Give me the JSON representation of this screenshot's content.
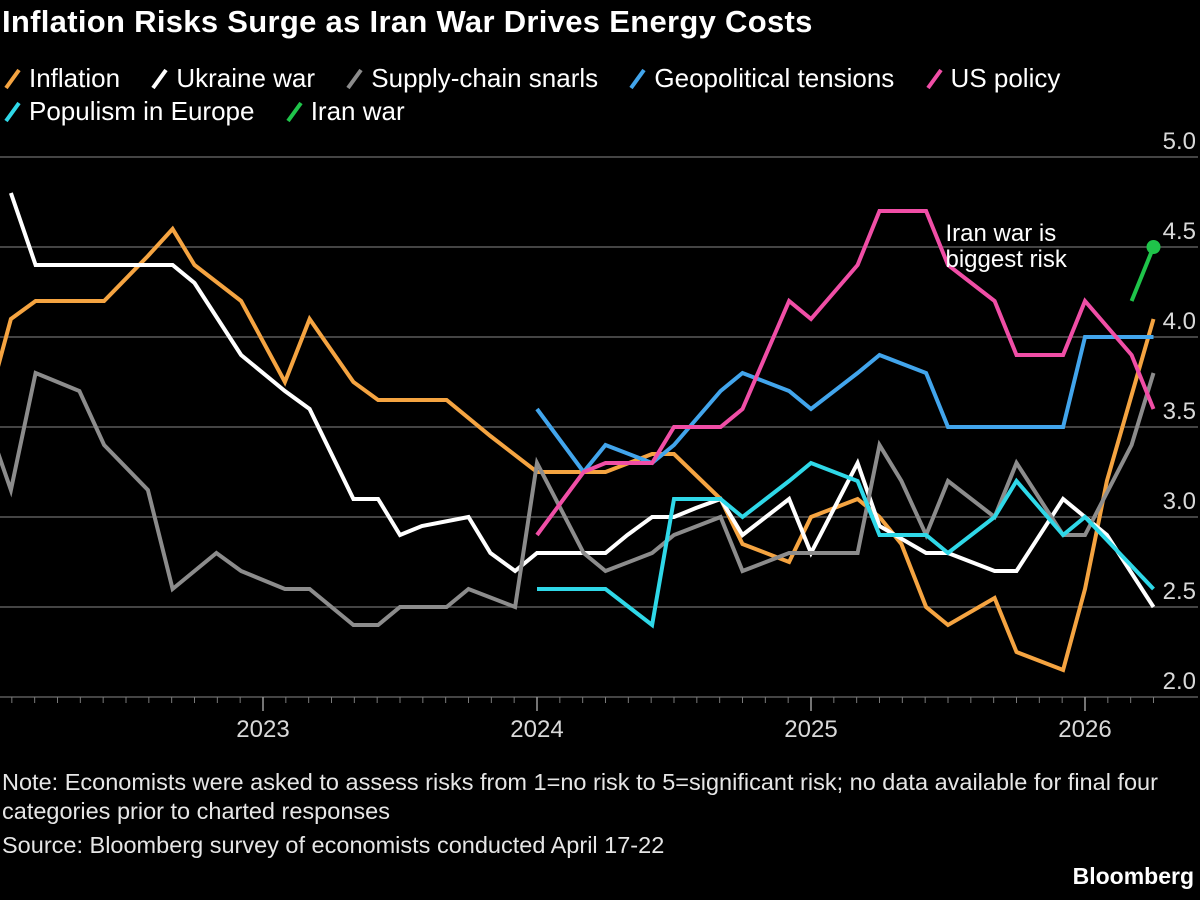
{
  "chart_data": {
    "type": "line",
    "title": "Inflation Risks Surge as Iran War Drives Energy Costs",
    "xlabel": "",
    "ylabel": "",
    "ylim": [
      2.0,
      5.0
    ],
    "yticks": [
      "2.0",
      "2.5",
      "3.0",
      "3.5",
      "4.0",
      "4.5",
      "5.0"
    ],
    "xlim": [
      2022.0,
      2026.33
    ],
    "xticks": [
      {
        "label": "2023",
        "value": 2023.0
      },
      {
        "label": "2024",
        "value": 2024.0
      },
      {
        "label": "2025",
        "value": 2025.0
      },
      {
        "label": "2026",
        "value": 2026.0
      }
    ],
    "legend_position": "top",
    "grid": "horizontal",
    "series": [
      {
        "name": "Inflation",
        "color": "#f5a441",
        "points": [
          [
            2022.0,
            3.65
          ],
          [
            2022.08,
            4.1
          ],
          [
            2022.17,
            4.2
          ],
          [
            2022.25,
            4.2
          ],
          [
            2022.33,
            4.2
          ],
          [
            2022.42,
            4.2
          ],
          [
            2022.58,
            4.45
          ],
          [
            2022.67,
            4.6
          ],
          [
            2022.75,
            4.4
          ],
          [
            2022.92,
            4.2
          ],
          [
            2023.08,
            3.75
          ],
          [
            2023.17,
            4.1
          ],
          [
            2023.33,
            3.75
          ],
          [
            2023.42,
            3.65
          ],
          [
            2023.58,
            3.65
          ],
          [
            2023.67,
            3.65
          ],
          [
            2023.83,
            3.45
          ],
          [
            2024.0,
            3.25
          ],
          [
            2024.08,
            3.25
          ],
          [
            2024.17,
            3.25
          ],
          [
            2024.25,
            3.25
          ],
          [
            2024.42,
            3.35
          ],
          [
            2024.5,
            3.35
          ],
          [
            2024.67,
            3.1
          ],
          [
            2024.75,
            2.85
          ],
          [
            2024.92,
            2.75
          ],
          [
            2025.0,
            3.0
          ],
          [
            2025.17,
            3.1
          ],
          [
            2025.25,
            3.0
          ],
          [
            2025.33,
            2.85
          ],
          [
            2025.42,
            2.5
          ],
          [
            2025.5,
            2.4
          ],
          [
            2025.67,
            2.55
          ],
          [
            2025.75,
            2.25
          ],
          [
            2025.92,
            2.15
          ],
          [
            2026.0,
            2.6
          ],
          [
            2026.08,
            3.2
          ],
          [
            2026.25,
            4.1
          ]
        ]
      },
      {
        "name": "Ukraine war",
        "color": "#ffffff",
        "points": [
          [
            2022.08,
            4.8
          ],
          [
            2022.17,
            4.4
          ],
          [
            2022.25,
            4.4
          ],
          [
            2022.5,
            4.4
          ],
          [
            2022.58,
            4.4
          ],
          [
            2022.67,
            4.4
          ],
          [
            2022.75,
            4.3
          ],
          [
            2022.92,
            3.9
          ],
          [
            2023.08,
            3.7
          ],
          [
            2023.17,
            3.6
          ],
          [
            2023.33,
            3.1
          ],
          [
            2023.42,
            3.1
          ],
          [
            2023.5,
            2.9
          ],
          [
            2023.58,
            2.95
          ],
          [
            2023.75,
            3.0
          ],
          [
            2023.83,
            2.8
          ],
          [
            2023.92,
            2.7
          ],
          [
            2024.0,
            2.8
          ],
          [
            2024.08,
            2.8
          ],
          [
            2024.25,
            2.8
          ],
          [
            2024.33,
            2.9
          ],
          [
            2024.42,
            3.0
          ],
          [
            2024.5,
            3.0
          ],
          [
            2024.58,
            3.05
          ],
          [
            2024.67,
            3.1
          ],
          [
            2024.75,
            2.9
          ],
          [
            2024.92,
            3.1
          ],
          [
            2025.0,
            2.8
          ],
          [
            2025.17,
            3.3
          ],
          [
            2025.25,
            2.95
          ],
          [
            2025.42,
            2.8
          ],
          [
            2025.5,
            2.8
          ],
          [
            2025.67,
            2.7
          ],
          [
            2025.75,
            2.7
          ],
          [
            2025.92,
            3.1
          ],
          [
            2026.0,
            3.0
          ],
          [
            2026.08,
            2.9
          ],
          [
            2026.25,
            2.5
          ]
        ]
      },
      {
        "name": "Supply-chain snarls",
        "color": "#8c8c8c",
        "points": [
          [
            2022.0,
            3.5
          ],
          [
            2022.08,
            3.15
          ],
          [
            2022.17,
            3.8
          ],
          [
            2022.25,
            3.75
          ],
          [
            2022.33,
            3.7
          ],
          [
            2022.42,
            3.4
          ],
          [
            2022.58,
            3.15
          ],
          [
            2022.67,
            2.6
          ],
          [
            2022.75,
            2.7
          ],
          [
            2022.83,
            2.8
          ],
          [
            2022.92,
            2.7
          ],
          [
            2023.08,
            2.6
          ],
          [
            2023.17,
            2.6
          ],
          [
            2023.33,
            2.4
          ],
          [
            2023.42,
            2.4
          ],
          [
            2023.5,
            2.5
          ],
          [
            2023.58,
            2.5
          ],
          [
            2023.67,
            2.5
          ],
          [
            2023.75,
            2.6
          ],
          [
            2023.92,
            2.5
          ],
          [
            2024.0,
            3.3
          ],
          [
            2024.17,
            2.8
          ],
          [
            2024.25,
            2.7
          ],
          [
            2024.42,
            2.8
          ],
          [
            2024.5,
            2.9
          ],
          [
            2024.67,
            3.0
          ],
          [
            2024.75,
            2.7
          ],
          [
            2024.92,
            2.8
          ],
          [
            2025.0,
            2.8
          ],
          [
            2025.17,
            2.8
          ],
          [
            2025.25,
            3.4
          ],
          [
            2025.33,
            3.2
          ],
          [
            2025.42,
            2.9
          ],
          [
            2025.5,
            3.2
          ],
          [
            2025.67,
            3.0
          ],
          [
            2025.75,
            3.3
          ],
          [
            2025.92,
            2.9
          ],
          [
            2026.0,
            2.9
          ],
          [
            2026.17,
            3.4
          ],
          [
            2026.25,
            3.8
          ]
        ]
      },
      {
        "name": "Geopolitical tensions",
        "color": "#42a5ec",
        "points": [
          [
            2024.0,
            3.6
          ],
          [
            2024.17,
            3.25
          ],
          [
            2024.25,
            3.4
          ],
          [
            2024.42,
            3.3
          ],
          [
            2024.5,
            3.4
          ],
          [
            2024.67,
            3.7
          ],
          [
            2024.75,
            3.8
          ],
          [
            2024.92,
            3.7
          ],
          [
            2025.0,
            3.6
          ],
          [
            2025.17,
            3.8
          ],
          [
            2025.25,
            3.9
          ],
          [
            2025.42,
            3.8
          ],
          [
            2025.5,
            3.5
          ],
          [
            2025.67,
            3.5
          ],
          [
            2025.75,
            3.5
          ],
          [
            2025.92,
            3.5
          ],
          [
            2026.0,
            4.0
          ],
          [
            2026.08,
            4.0
          ],
          [
            2026.25,
            4.0
          ]
        ]
      },
      {
        "name": "US policy",
        "color": "#f04ea6",
        "points": [
          [
            2024.0,
            2.9
          ],
          [
            2024.17,
            3.25
          ],
          [
            2024.25,
            3.3
          ],
          [
            2024.42,
            3.3
          ],
          [
            2024.5,
            3.5
          ],
          [
            2024.67,
            3.5
          ],
          [
            2024.75,
            3.6
          ],
          [
            2024.92,
            4.2
          ],
          [
            2025.0,
            4.1
          ],
          [
            2025.17,
            4.4
          ],
          [
            2025.25,
            4.7
          ],
          [
            2025.42,
            4.7
          ],
          [
            2025.5,
            4.4
          ],
          [
            2025.67,
            4.2
          ],
          [
            2025.75,
            3.9
          ],
          [
            2025.92,
            3.9
          ],
          [
            2026.0,
            4.2
          ],
          [
            2026.17,
            3.9
          ],
          [
            2026.25,
            3.6
          ]
        ]
      },
      {
        "name": "Populism in Europe",
        "color": "#2fd8e8",
        "points": [
          [
            2024.0,
            2.6
          ],
          [
            2024.17,
            2.6
          ],
          [
            2024.25,
            2.6
          ],
          [
            2024.42,
            2.4
          ],
          [
            2024.5,
            3.1
          ],
          [
            2024.67,
            3.1
          ],
          [
            2024.75,
            3.0
          ],
          [
            2024.92,
            3.2
          ],
          [
            2025.0,
            3.3
          ],
          [
            2025.17,
            3.2
          ],
          [
            2025.25,
            2.9
          ],
          [
            2025.42,
            2.9
          ],
          [
            2025.5,
            2.8
          ],
          [
            2025.67,
            3.0
          ],
          [
            2025.75,
            3.2
          ],
          [
            2025.92,
            2.9
          ],
          [
            2026.0,
            3.0
          ],
          [
            2026.25,
            2.6
          ]
        ]
      },
      {
        "name": "Iran war",
        "color": "#1fc44a",
        "points": [
          [
            2026.17,
            4.2
          ],
          [
            2026.25,
            4.5
          ]
        ]
      }
    ],
    "annotations": [
      {
        "text": [
          "Iran war is",
          "biggest risk"
        ],
        "series": "Iran war",
        "x": 2026.25,
        "y": 4.5
      }
    ]
  },
  "note": "Note: Economists were asked to assess risks from 1=no risk to 5=significant risk; no data available for final four categories prior to charted responses",
  "source": "Source: Bloomberg survey of economists conducted April 17-22",
  "brand": "Bloomberg"
}
